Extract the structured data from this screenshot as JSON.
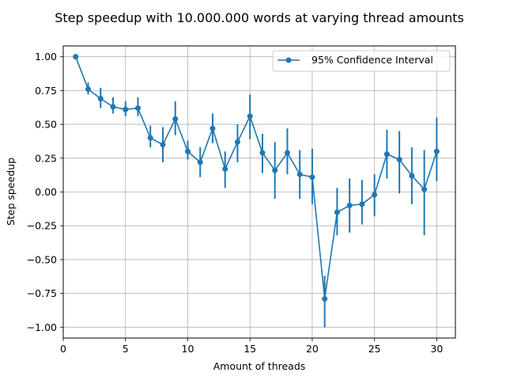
{
  "chart_data": {
    "type": "line",
    "title": "Step speedup with 10.000.000 words at varying thread amounts",
    "xlabel": "Amount of threads",
    "ylabel": "Step speedup",
    "xlim": [
      0,
      31.5
    ],
    "ylim": [
      -1.08,
      1.08
    ],
    "x_ticks": [
      0,
      5,
      10,
      15,
      20,
      25,
      30
    ],
    "y_ticks": [
      -1.0,
      -0.75,
      -0.5,
      -0.25,
      0.0,
      0.25,
      0.5,
      0.75,
      1.0
    ],
    "x_tick_labels": [
      "0",
      "5",
      "10",
      "15",
      "20",
      "25",
      "30"
    ],
    "y_tick_labels": [
      "−1.00",
      "−0.75",
      "−0.50",
      "−0.25",
      "0.00",
      "0.25",
      "0.50",
      "0.75",
      "1.00"
    ],
    "grid": true,
    "legend_position": "top-right",
    "series": [
      {
        "name": "95% Confidence Interval",
        "color": "#1f77b4",
        "x": [
          1,
          2,
          3,
          4,
          5,
          6,
          7,
          8,
          9,
          10,
          11,
          12,
          13,
          14,
          15,
          16,
          17,
          18,
          19,
          20,
          21,
          22,
          23,
          24,
          25,
          26,
          27,
          28,
          29,
          30
        ],
        "y": [
          1.0,
          0.76,
          0.69,
          0.63,
          0.61,
          0.62,
          0.4,
          0.35,
          0.54,
          0.3,
          0.22,
          0.47,
          0.17,
          0.37,
          0.56,
          0.29,
          0.16,
          0.29,
          0.13,
          0.11,
          -0.79,
          -0.15,
          -0.1,
          -0.09,
          -0.02,
          0.28,
          0.24,
          0.12,
          0.02,
          0.3
        ],
        "ci_low": [
          1.0,
          0.72,
          0.62,
          0.58,
          0.56,
          0.56,
          0.33,
          0.22,
          0.42,
          0.24,
          0.11,
          0.36,
          0.03,
          0.22,
          0.39,
          0.14,
          -0.05,
          0.13,
          -0.05,
          -0.09,
          -1.0,
          -0.32,
          -0.3,
          -0.24,
          -0.18,
          0.1,
          -0.01,
          -0.09,
          -0.32,
          0.08
        ],
        "ci_high": [
          1.0,
          0.81,
          0.77,
          0.7,
          0.67,
          0.7,
          0.49,
          0.48,
          0.67,
          0.38,
          0.33,
          0.58,
          0.3,
          0.5,
          0.72,
          0.43,
          0.37,
          0.47,
          0.31,
          0.32,
          -0.62,
          0.03,
          0.1,
          0.09,
          0.13,
          0.46,
          0.45,
          0.33,
          0.31,
          0.55
        ]
      }
    ]
  }
}
